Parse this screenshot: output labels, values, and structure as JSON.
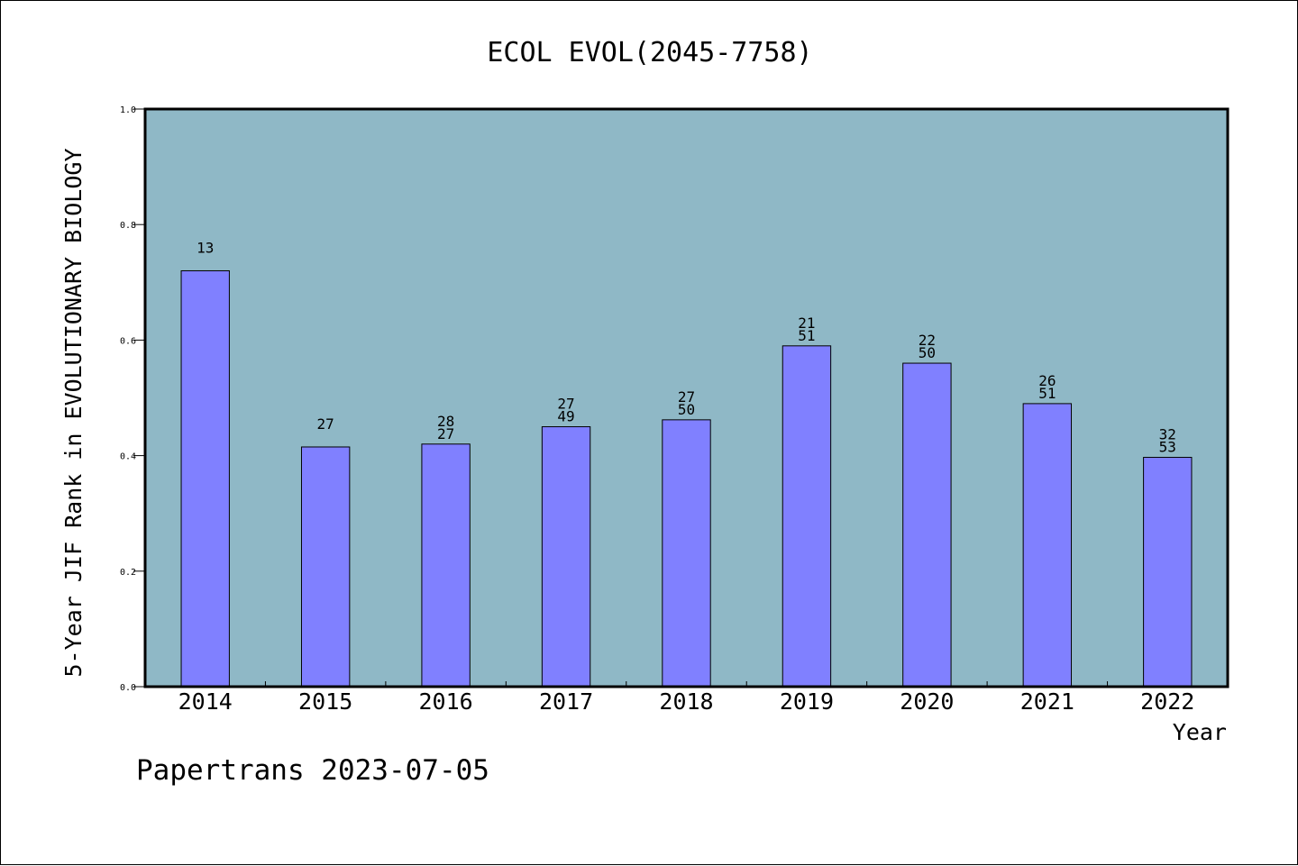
{
  "footer": {
    "text": "Papertrans 2023-07-05"
  },
  "chart_data": {
    "type": "bar",
    "title": "ECOL EVOL(2045-7758)",
    "xlabel": "Year",
    "ylabel": "5-Year JIF Rank in EVOLUTIONARY BIOLOGY",
    "ylim": [
      0.0,
      1.0
    ],
    "yticks": [
      "0.0",
      "0.2",
      "0.4",
      "0.6",
      "0.8",
      "1.0"
    ],
    "categories": [
      "2014",
      "2015",
      "2016",
      "2017",
      "2018",
      "2019",
      "2020",
      "2021",
      "2022"
    ],
    "values": [
      0.72,
      0.415,
      0.42,
      0.45,
      0.462,
      0.59,
      0.56,
      0.49,
      0.397
    ],
    "labels": [
      [
        "13"
      ],
      [
        "27"
      ],
      [
        "28",
        "27"
      ],
      [
        "27",
        "49"
      ],
      [
        "27",
        "50"
      ],
      [
        "21",
        "51"
      ],
      [
        "22",
        "50"
      ],
      [
        "26",
        "51"
      ],
      [
        "32",
        "53"
      ]
    ],
    "grid": false,
    "colors": {
      "plot_background": "#8fb8c6",
      "bar_fill": "#8080ff",
      "bar_edge": "#000000"
    }
  }
}
